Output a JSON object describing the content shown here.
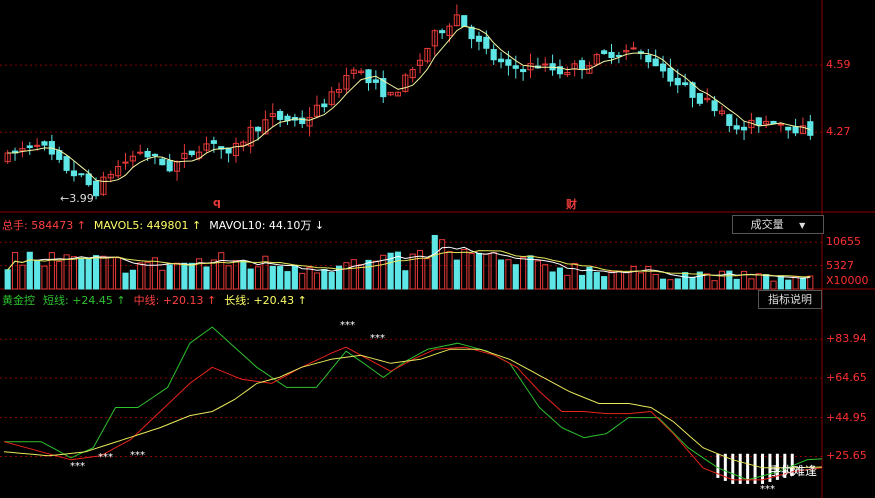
{
  "colors": {
    "up": "#e83a3a",
    "down": "#5ee6e6",
    "axis": "#8b0000",
    "short": "#2ec12e",
    "mid": "#e8241b",
    "long": "#e8e85a",
    "ma": "#f5f5a0",
    "mavol5": "#ffffff",
    "mavol10": "#e8e85a"
  },
  "price_panel": {
    "ticks": [
      "4.59",
      "4.27"
    ],
    "low_marker": "3.99",
    "marks": [
      {
        "text": "q",
        "color": "#e83a3a"
      },
      {
        "text": "财",
        "color": "#e83a3a"
      }
    ]
  },
  "volume_panel": {
    "header": [
      {
        "text": "总手: 584473",
        "arrow": "↑",
        "color": "#ff4040"
      },
      {
        "text": "MAVOL5: 449801",
        "arrow": "↑",
        "color": "#ffff66"
      },
      {
        "text": "MAVOL10: 44.10万",
        "arrow": "↓",
        "color": "#ffffff"
      }
    ],
    "dropdown_label": "成交量",
    "dropdown_icon": "▼",
    "ticks": [
      "10655",
      "5327"
    ],
    "unit": "X10000"
  },
  "indicator_panel": {
    "header": [
      {
        "text": "黄金控",
        "arrow": "",
        "color": "#2ec12e"
      },
      {
        "text": "短线: +24.45",
        "arrow": "↑",
        "color": "#2ec12e"
      },
      {
        "text": "中线: +20.13",
        "arrow": "↑",
        "color": "#ff4040"
      },
      {
        "text": "长线: +20.43",
        "arrow": "↑",
        "color": "#ffff66"
      }
    ],
    "help_label": "指标说明",
    "ticks": [
      "+83.94",
      "+64.65",
      "+44.95",
      "+25.65"
    ],
    "annotation": "手执难逢",
    "star_text": "***"
  },
  "chart_data": [
    {
      "type": "candlestick",
      "y_ticks": [
        4.59,
        4.27
      ],
      "ylim": [
        3.89,
        4.9
      ],
      "period_count": 110,
      "price_anchors": [
        [
          0,
          4.15
        ],
        [
          4,
          4.23
        ],
        [
          7,
          4.12
        ],
        [
          10,
          4.05
        ],
        [
          12,
          3.99
        ],
        [
          14,
          4.08
        ],
        [
          18,
          4.18
        ],
        [
          22,
          4.1
        ],
        [
          26,
          4.2
        ],
        [
          28,
          4.23
        ],
        [
          30,
          4.15
        ],
        [
          33,
          4.28
        ],
        [
          36,
          4.34
        ],
        [
          40,
          4.32
        ],
        [
          44,
          4.44
        ],
        [
          47,
          4.59
        ],
        [
          49,
          4.51
        ],
        [
          52,
          4.44
        ],
        [
          55,
          4.56
        ],
        [
          58,
          4.73
        ],
        [
          61,
          4.83
        ],
        [
          64,
          4.69
        ],
        [
          66,
          4.62
        ],
        [
          68,
          4.57
        ],
        [
          72,
          4.59
        ],
        [
          75,
          4.56
        ],
        [
          78,
          4.59
        ],
        [
          82,
          4.65
        ],
        [
          85,
          4.66
        ],
        [
          88,
          4.6
        ],
        [
          91,
          4.5
        ],
        [
          94,
          4.43
        ],
        [
          97,
          4.38
        ],
        [
          99,
          4.27
        ],
        [
          102,
          4.32
        ],
        [
          104,
          4.33
        ],
        [
          107,
          4.29
        ],
        [
          109,
          4.27
        ]
      ],
      "low_marker_value": 3.99
    },
    {
      "type": "bar",
      "series_name": "总手",
      "ylim": [
        0,
        13000
      ],
      "y_ticks": [
        10655,
        5327
      ],
      "bar_count": 110,
      "volume_anchors": [
        [
          0,
          7000
        ],
        [
          10,
          6000
        ],
        [
          20,
          5500
        ],
        [
          30,
          6200
        ],
        [
          40,
          5300
        ],
        [
          48,
          5600
        ],
        [
          55,
          6200
        ],
        [
          58,
          10000
        ],
        [
          60,
          8000
        ],
        [
          63,
          7400
        ],
        [
          66,
          6500
        ],
        [
          70,
          5600
        ],
        [
          80,
          4400
        ],
        [
          90,
          3400
        ],
        [
          100,
          2900
        ],
        [
          109,
          2200
        ]
      ],
      "mavol5_last": 449801,
      "mavol10_last": 441000
    },
    {
      "type": "line",
      "ylim": [
        5,
        100
      ],
      "y_ticks": [
        83.94,
        64.65,
        44.95,
        25.65
      ],
      "series": [
        {
          "name": "短线",
          "last": 24.45,
          "points": [
            [
              0,
              33
            ],
            [
              5,
              33
            ],
            [
              9,
              25
            ],
            [
              12,
              30
            ],
            [
              15,
              50
            ],
            [
              18,
              50
            ],
            [
              22,
              60
            ],
            [
              25,
              82
            ],
            [
              28,
              90
            ],
            [
              31,
              80
            ],
            [
              34,
              70
            ],
            [
              38,
              60
            ],
            [
              42,
              60
            ],
            [
              46,
              78
            ],
            [
              48,
              73
            ],
            [
              51,
              65
            ],
            [
              54,
              73
            ],
            [
              57,
              79
            ],
            [
              61,
              82
            ],
            [
              65,
              78
            ],
            [
              68,
              72
            ],
            [
              72,
              50
            ],
            [
              75,
              40
            ],
            [
              78,
              35
            ],
            [
              81,
              37
            ],
            [
              84,
              45
            ],
            [
              88,
              45
            ],
            [
              92,
              30
            ],
            [
              96,
              20
            ],
            [
              100,
              14
            ],
            [
              104,
              18
            ],
            [
              108,
              24
            ],
            [
              110,
              24.45
            ]
          ]
        },
        {
          "name": "中线",
          "last": 20.13,
          "points": [
            [
              0,
              33
            ],
            [
              5,
              28
            ],
            [
              9,
              24
            ],
            [
              13,
              26
            ],
            [
              17,
              34
            ],
            [
              21,
              48
            ],
            [
              25,
              62
            ],
            [
              28,
              70
            ],
            [
              32,
              64
            ],
            [
              36,
              62
            ],
            [
              40,
              70
            ],
            [
              44,
              77
            ],
            [
              46,
              80
            ],
            [
              49,
              74
            ],
            [
              52,
              68
            ],
            [
              55,
              74
            ],
            [
              58,
              79
            ],
            [
              62,
              80
            ],
            [
              66,
              76
            ],
            [
              69,
              70
            ],
            [
              72,
              58
            ],
            [
              75,
              48
            ],
            [
              78,
              48
            ],
            [
              81,
              47
            ],
            [
              84,
              47
            ],
            [
              87,
              48
            ],
            [
              90,
              37
            ],
            [
              94,
              20
            ],
            [
              98,
              14
            ],
            [
              102,
              14
            ],
            [
              106,
              18
            ],
            [
              110,
              20.13
            ]
          ]
        },
        {
          "name": "长线",
          "last": 20.43,
          "points": [
            [
              0,
              28
            ],
            [
              6,
              26
            ],
            [
              11,
              28
            ],
            [
              16,
              34
            ],
            [
              21,
              40
            ],
            [
              25,
              46
            ],
            [
              28,
              48
            ],
            [
              31,
              54
            ],
            [
              34,
              62
            ],
            [
              37,
              65
            ],
            [
              40,
              70
            ],
            [
              44,
              74
            ],
            [
              48,
              76
            ],
            [
              52,
              72
            ],
            [
              56,
              74
            ],
            [
              60,
              79
            ],
            [
              64,
              79
            ],
            [
              68,
              74
            ],
            [
              72,
              66
            ],
            [
              76,
              58
            ],
            [
              80,
              52
            ],
            [
              84,
              52
            ],
            [
              87,
              50
            ],
            [
              90,
              43
            ],
            [
              94,
              30
            ],
            [
              98,
              24
            ],
            [
              102,
              20
            ],
            [
              106,
              20
            ],
            [
              110,
              20.43
            ]
          ]
        }
      ]
    }
  ]
}
